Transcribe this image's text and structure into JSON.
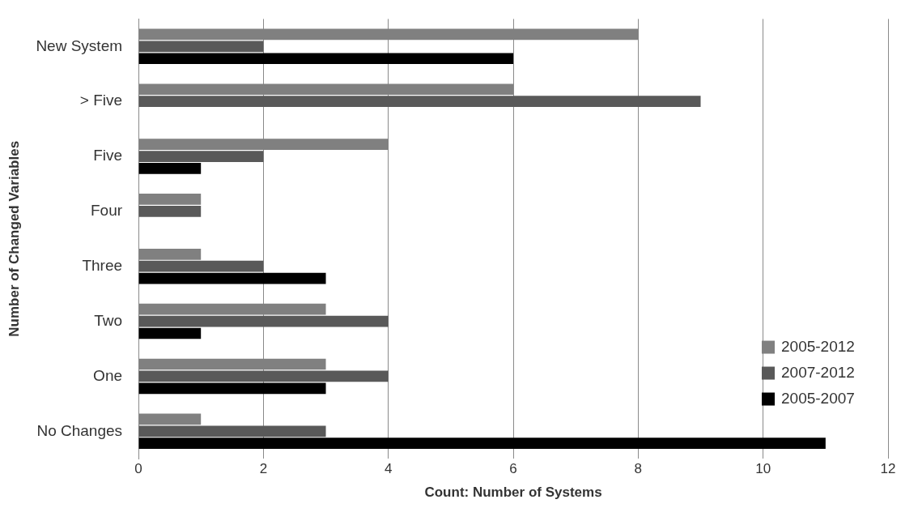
{
  "chart_data": {
    "type": "bar",
    "orientation": "horizontal",
    "xlabel": "Count: Number of Systems",
    "ylabel": "Number of Changed Variables",
    "categories": [
      "New System",
      "> Five",
      "Five",
      "Four",
      "Three",
      "Two",
      "One",
      "No Changes"
    ],
    "series": [
      {
        "name": "2005-2012",
        "color": "#808080",
        "values": [
          8,
          6,
          4,
          1,
          1,
          3,
          3,
          1
        ]
      },
      {
        "name": "2007-2012",
        "color": "#595959",
        "values": [
          2,
          9,
          2,
          1,
          2,
          4,
          4,
          3
        ]
      },
      {
        "name": "2005-2007",
        "color": "#000000",
        "values": [
          6,
          0,
          1,
          0,
          3,
          1,
          3,
          11
        ]
      }
    ],
    "xlim": [
      0,
      12
    ],
    "xticks": [
      0,
      2,
      4,
      6,
      8,
      10,
      12
    ],
    "grid": "x",
    "legend": "bottom right"
  }
}
